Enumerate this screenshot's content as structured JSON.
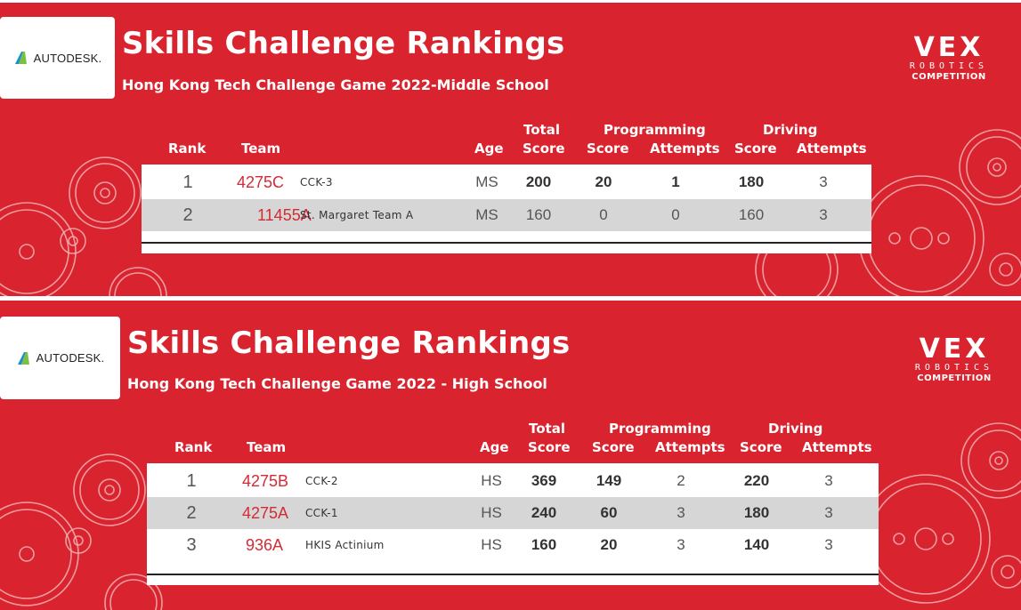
{
  "panels": [
    {
      "logo_text": "AUTODESK.",
      "title": "Skills Challenge Rankings",
      "subtitle": "Hong Kong Tech Challenge Game 2022-Middle School",
      "vex_logo": {
        "word": "VEX",
        "line2": "ROBOTICS",
        "line3": "COMPETITION"
      },
      "headers": {
        "rank": "Rank",
        "team": "Team",
        "age": "Age",
        "total": "Total",
        "total_score": "Score",
        "programming": "Programming",
        "prog_score": "Score",
        "prog_attempts": "Attempts",
        "driving": "Driving",
        "drive_score": "Score",
        "drive_attempts": "Attempts"
      },
      "rows": [
        {
          "rank": "1",
          "team": "4275C",
          "name": "CCK-3",
          "age": "MS",
          "total": "200",
          "prog_score": "20",
          "prog_attempts": "1",
          "drive_score": "180",
          "drive_attempts": "3"
        },
        {
          "rank": "2",
          "team": "11455A",
          "name": "St. Margaret Team A",
          "age": "MS",
          "total": "160",
          "prog_score": "0",
          "prog_attempts": "0",
          "drive_score": "160",
          "drive_attempts": "3"
        }
      ]
    },
    {
      "logo_text": "AUTODESK.",
      "title": "Skills Challenge Rankings",
      "subtitle": "Hong Kong Tech Challenge Game 2022 - High School",
      "vex_logo": {
        "word": "VEX",
        "line2": "ROBOTICS",
        "line3": "COMPETITION"
      },
      "headers": {
        "rank": "Rank",
        "team": "Team",
        "age": "Age",
        "total": "Total",
        "total_score": "Score",
        "programming": "Programming",
        "prog_score": "Score",
        "prog_attempts": "Attempts",
        "driving": "Driving",
        "drive_score": "Score",
        "drive_attempts": "Attempts"
      },
      "rows": [
        {
          "rank": "1",
          "team": "4275B",
          "name": "CCK-2",
          "age": "HS",
          "total": "369",
          "prog_score": "149",
          "prog_attempts": "2",
          "drive_score": "220",
          "drive_attempts": "3"
        },
        {
          "rank": "2",
          "team": "4275A",
          "name": "CCK-1",
          "age": "HS",
          "total": "240",
          "prog_score": "60",
          "prog_attempts": "3",
          "drive_score": "180",
          "drive_attempts": "3"
        },
        {
          "rank": "3",
          "team": "936A",
          "name": "HKIS Actinium",
          "age": "HS",
          "total": "160",
          "prog_score": "20",
          "prog_attempts": "3",
          "drive_score": "140",
          "drive_attempts": "3"
        }
      ]
    }
  ],
  "colors": {
    "background_red": "#d9232e",
    "team_number_red": "#d42b35",
    "row_alt_gray": "#d6d6d6"
  },
  "icons": [
    "autodesk-logo-icon",
    "vex-robotics-logo-icon",
    "gear-decoration-icon"
  ]
}
